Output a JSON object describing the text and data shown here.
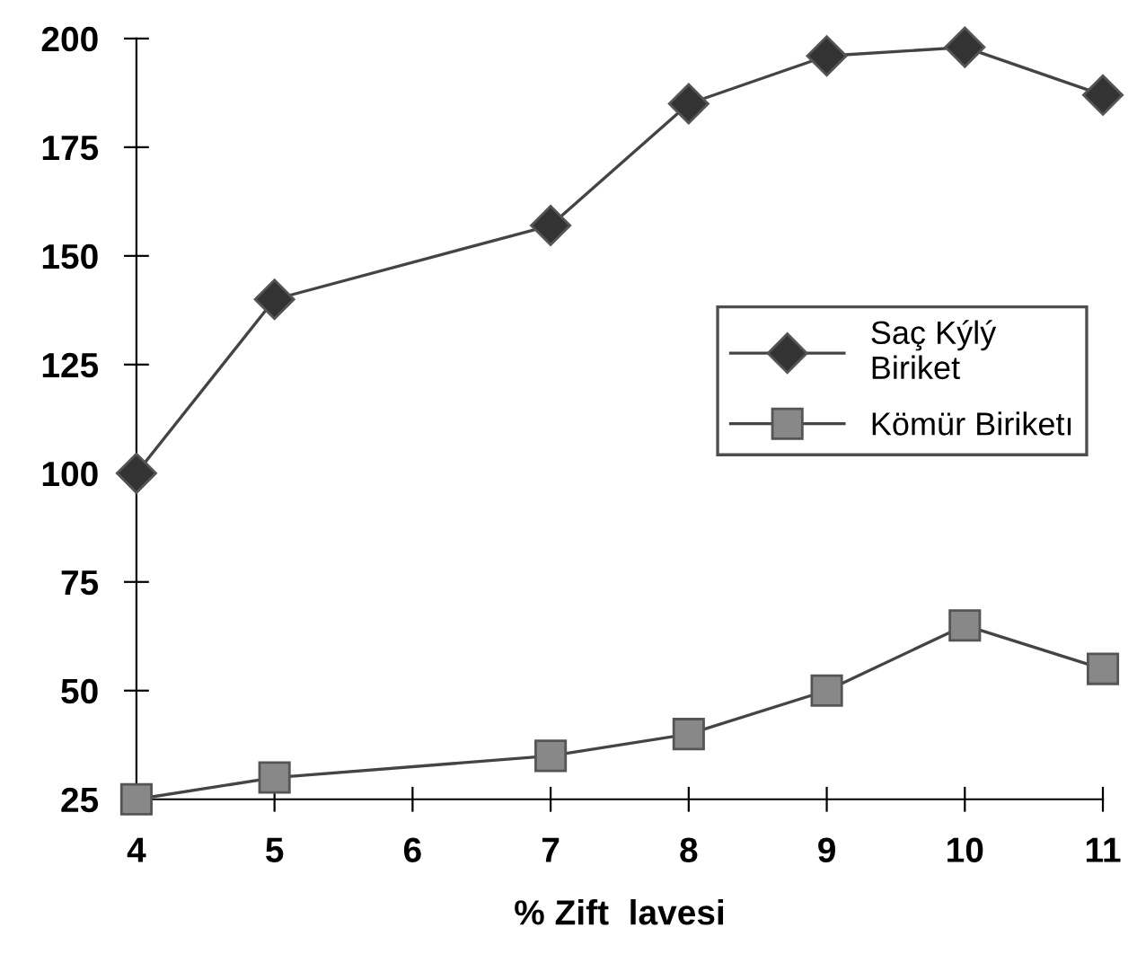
{
  "chart_data": {
    "type": "line",
    "xlabel": "% Zift  lavesi",
    "x": [
      4,
      5,
      7,
      8,
      9,
      10,
      11
    ],
    "series": [
      {
        "name": "Saç Kýlý\nBiriket",
        "color": "#333333",
        "marker": "diamond",
        "values": [
          100,
          140,
          157,
          185,
          196,
          198,
          187
        ]
      },
      {
        "name": "Kömür Biriketı",
        "color": "#888888",
        "marker": "square",
        "values": [
          25,
          30,
          35,
          40,
          50,
          65,
          55
        ]
      }
    ],
    "xlim": [
      4,
      11
    ],
    "xticks": [
      4,
      5,
      6,
      7,
      8,
      9,
      10,
      11
    ],
    "ylim": [
      25,
      200
    ],
    "yticks": [
      25,
      50,
      75,
      100,
      125,
      150,
      175,
      200
    ],
    "grid": false,
    "legend": "right",
    "line_style": "solid"
  }
}
